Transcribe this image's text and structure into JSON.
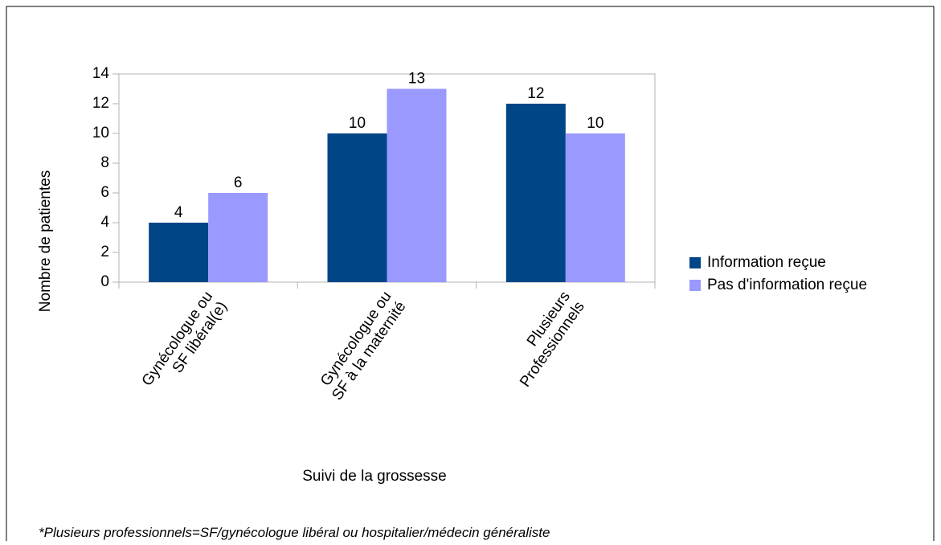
{
  "chart_data": {
    "type": "bar",
    "categories": [
      "Gynécologue ou\nSF libéral(e)",
      "Gynécologue ou\nSF à la maternité",
      "Plusieurs\nProfessionnels"
    ],
    "series": [
      {
        "name": "Information reçue",
        "color": "#004586",
        "values": [
          4,
          10,
          12
        ]
      },
      {
        "name": "Pas d'information reçue",
        "color": "#9999ff",
        "values": [
          6,
          13,
          10
        ]
      }
    ],
    "ylim": [
      0,
      14
    ],
    "yticks": [
      0,
      2,
      4,
      6,
      8,
      10,
      12,
      14
    ],
    "ylabel": "Nombre de patientes",
    "xlabel": "Suivi de la grossesse",
    "legend": "right",
    "footnote": "*Plusieurs professionnels=SF/gynécologue libéral ou hospitalier/médecin généraliste"
  }
}
